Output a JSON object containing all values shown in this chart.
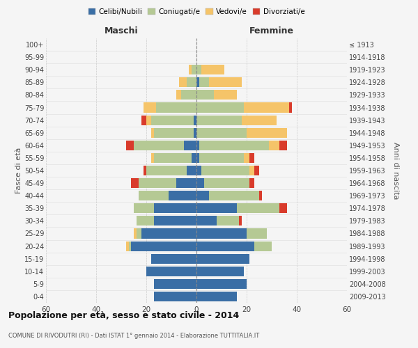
{
  "age_groups": [
    "0-4",
    "5-9",
    "10-14",
    "15-19",
    "20-24",
    "25-29",
    "30-34",
    "35-39",
    "40-44",
    "45-49",
    "50-54",
    "55-59",
    "60-64",
    "65-69",
    "70-74",
    "75-79",
    "80-84",
    "85-89",
    "90-94",
    "95-99",
    "100+"
  ],
  "birth_years": [
    "2009-2013",
    "2004-2008",
    "1999-2003",
    "1994-1998",
    "1989-1993",
    "1984-1988",
    "1979-1983",
    "1974-1978",
    "1969-1973",
    "1964-1968",
    "1959-1963",
    "1954-1958",
    "1949-1953",
    "1944-1948",
    "1939-1943",
    "1934-1938",
    "1929-1933",
    "1924-1928",
    "1919-1923",
    "1914-1918",
    "≤ 1913"
  ],
  "males": {
    "celibi": [
      17,
      17,
      20,
      18,
      26,
      22,
      17,
      17,
      11,
      8,
      4,
      2,
      5,
      1,
      1,
      0,
      0,
      0,
      0,
      0,
      0
    ],
    "coniugati": [
      0,
      0,
      0,
      0,
      1,
      2,
      7,
      8,
      12,
      15,
      16,
      15,
      20,
      16,
      17,
      16,
      6,
      4,
      2,
      0,
      0
    ],
    "vedovi": [
      0,
      0,
      0,
      0,
      1,
      1,
      0,
      0,
      0,
      0,
      0,
      1,
      0,
      1,
      2,
      5,
      2,
      3,
      1,
      0,
      0
    ],
    "divorziati": [
      0,
      0,
      0,
      0,
      0,
      0,
      0,
      0,
      0,
      3,
      1,
      0,
      3,
      0,
      2,
      0,
      0,
      0,
      0,
      0,
      0
    ]
  },
  "females": {
    "nubili": [
      16,
      20,
      19,
      21,
      23,
      20,
      8,
      16,
      5,
      3,
      2,
      1,
      1,
      0,
      0,
      0,
      0,
      1,
      0,
      0,
      0
    ],
    "coniugate": [
      0,
      0,
      0,
      0,
      7,
      8,
      9,
      17,
      20,
      18,
      19,
      18,
      28,
      20,
      18,
      19,
      7,
      4,
      2,
      0,
      0
    ],
    "vedove": [
      0,
      0,
      0,
      0,
      0,
      0,
      0,
      0,
      0,
      0,
      2,
      2,
      4,
      16,
      14,
      18,
      9,
      13,
      9,
      0,
      0
    ],
    "divorziate": [
      0,
      0,
      0,
      0,
      0,
      0,
      1,
      3,
      1,
      2,
      2,
      2,
      3,
      0,
      0,
      1,
      0,
      0,
      0,
      0,
      0
    ]
  },
  "colors": {
    "celibi": "#3a6ea5",
    "coniugati": "#b5c994",
    "vedovi": "#f5c469",
    "divorziati": "#d93b2b"
  },
  "title": "Popolazione per età, sesso e stato civile - 2014",
  "subtitle": "COMUNE DI RIVODUTRI (RI) - Dati ISTAT 1° gennaio 2014 - Elaborazione TUTTITALIA.IT",
  "xlabel_left": "Maschi",
  "xlabel_right": "Femmine",
  "ylabel_left": "Fasce di età",
  "ylabel_right": "Anni di nascita",
  "xlim": 60,
  "background_color": "#f5f5f5",
  "legend_labels": [
    "Celibi/Nubili",
    "Coniugati/e",
    "Vedovi/e",
    "Divorziati/e"
  ]
}
